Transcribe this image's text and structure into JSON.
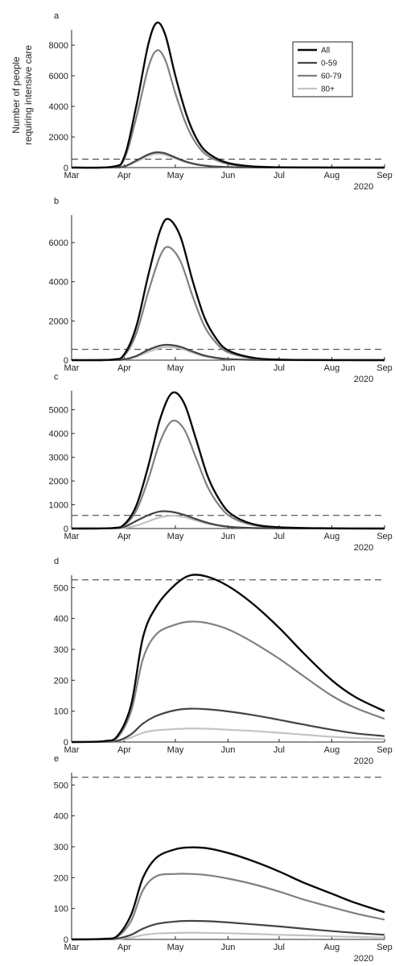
{
  "figure": {
    "ylabel_line1": "Number of people",
    "ylabel_line2": "requiring intensive care",
    "year_label": "2020"
  },
  "colors": {
    "All": "#0a0a0a",
    "0-59": "#444444",
    "60-79": "#808080",
    "80+": "#c3c3c3",
    "threshold": "#333333"
  },
  "chart_data": [
    {
      "panel": "a",
      "type": "line",
      "xticks": [
        "Mar",
        "Apr",
        "May",
        "Jun",
        "Jul",
        "Aug",
        "Sep"
      ],
      "xlim": [
        "2020-03-01",
        "2020-09-01"
      ],
      "ylim": [
        0,
        9000
      ],
      "yticks": [
        0,
        2000,
        4000,
        6000,
        8000
      ],
      "threshold": 550,
      "legend": {
        "placement": "top-right",
        "entries": [
          "All",
          "0-59",
          "60-79",
          "80+"
        ]
      },
      "series": [
        {
          "name": "All",
          "x": [
            "2020-03-01",
            "2020-03-25",
            "2020-04-01",
            "2020-04-08",
            "2020-04-15",
            "2020-04-20",
            "2020-04-25",
            "2020-05-01",
            "2020-05-08",
            "2020-05-15",
            "2020-05-22",
            "2020-06-01",
            "2020-06-15",
            "2020-07-01",
            "2020-08-01",
            "2020-09-01"
          ],
          "y": [
            0,
            60,
            700,
            4000,
            8000,
            9450,
            8700,
            6000,
            3300,
            1600,
            800,
            300,
            80,
            20,
            5,
            0
          ]
        },
        {
          "name": "0-59",
          "x": [
            "2020-03-01",
            "2020-03-25",
            "2020-04-01",
            "2020-04-08",
            "2020-04-15",
            "2020-04-20",
            "2020-04-25",
            "2020-05-01",
            "2020-05-08",
            "2020-05-15",
            "2020-05-22",
            "2020-06-01",
            "2020-06-15",
            "2020-07-01",
            "2020-08-01",
            "2020-09-01"
          ],
          "y": [
            0,
            8,
            80,
            450,
            850,
            1000,
            930,
            660,
            360,
            180,
            90,
            35,
            10,
            3,
            1,
            0
          ]
        },
        {
          "name": "60-79",
          "x": [
            "2020-03-01",
            "2020-03-25",
            "2020-04-01",
            "2020-04-08",
            "2020-04-15",
            "2020-04-20",
            "2020-04-25",
            "2020-05-01",
            "2020-05-08",
            "2020-05-15",
            "2020-05-22",
            "2020-06-01",
            "2020-06-15",
            "2020-07-01",
            "2020-08-01",
            "2020-09-01"
          ],
          "y": [
            0,
            45,
            560,
            3250,
            6500,
            7650,
            7050,
            4850,
            2650,
            1300,
            640,
            240,
            60,
            15,
            4,
            0
          ]
        },
        {
          "name": "80+",
          "x": [
            "2020-03-01",
            "2020-03-25",
            "2020-04-01",
            "2020-04-08",
            "2020-04-15",
            "2020-04-20",
            "2020-04-25",
            "2020-05-01",
            "2020-05-08",
            "2020-05-15",
            "2020-05-22",
            "2020-06-01",
            "2020-06-15",
            "2020-07-01",
            "2020-08-01",
            "2020-09-01"
          ],
          "y": [
            0,
            7,
            70,
            380,
            760,
            900,
            830,
            590,
            330,
            160,
            80,
            30,
            9,
            3,
            1,
            0
          ]
        }
      ]
    },
    {
      "panel": "b",
      "type": "line",
      "xticks": [
        "Mar",
        "Apr",
        "May",
        "Jun",
        "Jul",
        "Aug",
        "Sep"
      ],
      "xlim": [
        "2020-03-01",
        "2020-09-01"
      ],
      "ylim": [
        0,
        7400
      ],
      "yticks": [
        0,
        2000,
        4000,
        6000
      ],
      "threshold": 550,
      "series": [
        {
          "name": "All",
          "x": [
            "2020-03-01",
            "2020-03-25",
            "2020-04-01",
            "2020-04-08",
            "2020-04-15",
            "2020-04-22",
            "2020-04-27",
            "2020-05-04",
            "2020-05-11",
            "2020-05-18",
            "2020-05-25",
            "2020-06-01",
            "2020-06-15",
            "2020-07-01",
            "2020-08-01",
            "2020-09-01"
          ],
          "y": [
            0,
            30,
            300,
            1700,
            4300,
            6600,
            7200,
            6300,
            4100,
            2200,
            1100,
            500,
            130,
            30,
            5,
            0
          ]
        },
        {
          "name": "0-59",
          "x": [
            "2020-03-01",
            "2020-03-25",
            "2020-04-01",
            "2020-04-08",
            "2020-04-15",
            "2020-04-22",
            "2020-04-27",
            "2020-05-04",
            "2020-05-11",
            "2020-05-18",
            "2020-05-25",
            "2020-06-01",
            "2020-06-15",
            "2020-07-01",
            "2020-08-01",
            "2020-09-01"
          ],
          "y": [
            0,
            4,
            40,
            210,
            520,
            740,
            780,
            680,
            450,
            240,
            120,
            55,
            15,
            4,
            1,
            0
          ]
        },
        {
          "name": "60-79",
          "x": [
            "2020-03-01",
            "2020-03-25",
            "2020-04-01",
            "2020-04-08",
            "2020-04-15",
            "2020-04-22",
            "2020-04-27",
            "2020-05-04",
            "2020-05-11",
            "2020-05-18",
            "2020-05-25",
            "2020-06-01",
            "2020-06-15",
            "2020-07-01",
            "2020-08-01",
            "2020-09-01"
          ],
          "y": [
            0,
            24,
            240,
            1350,
            3450,
            5300,
            5770,
            5050,
            3300,
            1750,
            880,
            400,
            100,
            25,
            4,
            0
          ]
        },
        {
          "name": "80+",
          "x": [
            "2020-03-01",
            "2020-03-25",
            "2020-04-01",
            "2020-04-08",
            "2020-04-15",
            "2020-04-22",
            "2020-04-27",
            "2020-05-04",
            "2020-05-11",
            "2020-05-18",
            "2020-05-25",
            "2020-06-01",
            "2020-06-15",
            "2020-07-01",
            "2020-08-01",
            "2020-09-01"
          ],
          "y": [
            0,
            3,
            30,
            170,
            420,
            620,
            680,
            590,
            390,
            200,
            100,
            45,
            12,
            3,
            1,
            0
          ]
        }
      ]
    },
    {
      "panel": "c",
      "type": "line",
      "xticks": [
        "Mar",
        "Apr",
        "May",
        "Jun",
        "Jul",
        "Aug",
        "Sep"
      ],
      "xlim": [
        "2020-03-01",
        "2020-09-01"
      ],
      "ylim": [
        0,
        5800
      ],
      "yticks": [
        0,
        1000,
        2000,
        3000,
        4000,
        5000
      ],
      "threshold": 550,
      "series": [
        {
          "name": "All",
          "x": [
            "2020-03-01",
            "2020-03-25",
            "2020-04-01",
            "2020-04-08",
            "2020-04-15",
            "2020-04-22",
            "2020-04-29",
            "2020-05-06",
            "2020-05-13",
            "2020-05-20",
            "2020-05-27",
            "2020-06-03",
            "2020-06-15",
            "2020-07-01",
            "2020-08-01",
            "2020-09-01"
          ],
          "y": [
            0,
            20,
            180,
            950,
            2600,
            4600,
            5700,
            5300,
            3800,
            2200,
            1200,
            600,
            200,
            50,
            10,
            0
          ]
        },
        {
          "name": "0-59",
          "x": [
            "2020-03-01",
            "2020-03-25",
            "2020-04-01",
            "2020-04-08",
            "2020-04-15",
            "2020-04-22",
            "2020-04-29",
            "2020-05-06",
            "2020-05-13",
            "2020-05-20",
            "2020-05-27",
            "2020-06-03",
            "2020-06-15",
            "2020-07-01",
            "2020-08-01",
            "2020-09-01"
          ],
          "y": [
            0,
            8,
            70,
            320,
            560,
            720,
            700,
            580,
            400,
            240,
            130,
            65,
            22,
            6,
            1,
            0
          ]
        },
        {
          "name": "60-79",
          "x": [
            "2020-03-01",
            "2020-03-25",
            "2020-04-01",
            "2020-04-08",
            "2020-04-15",
            "2020-04-22",
            "2020-04-29",
            "2020-05-06",
            "2020-05-13",
            "2020-05-20",
            "2020-05-27",
            "2020-06-03",
            "2020-06-15",
            "2020-07-01",
            "2020-08-01",
            "2020-09-01"
          ],
          "y": [
            0,
            15,
            140,
            750,
            2050,
            3650,
            4520,
            4200,
            3000,
            1750,
            950,
            470,
            160,
            40,
            8,
            0
          ]
        },
        {
          "name": "80+",
          "x": [
            "2020-03-01",
            "2020-03-25",
            "2020-04-01",
            "2020-04-08",
            "2020-04-15",
            "2020-04-22",
            "2020-04-29",
            "2020-05-06",
            "2020-05-13",
            "2020-05-20",
            "2020-05-27",
            "2020-06-03",
            "2020-06-15",
            "2020-07-01",
            "2020-08-01",
            "2020-09-01"
          ],
          "y": [
            0,
            3,
            25,
            120,
            300,
            470,
            540,
            480,
            340,
            200,
            110,
            55,
            18,
            5,
            1,
            0
          ]
        }
      ]
    },
    {
      "panel": "d",
      "type": "line",
      "xticks": [
        "Mar",
        "Apr",
        "May",
        "Jun",
        "Jul",
        "Aug",
        "Sep"
      ],
      "xlim": [
        "2020-03-01",
        "2020-09-01"
      ],
      "ylim": [
        0,
        540
      ],
      "yticks": [
        0,
        100,
        200,
        300,
        400,
        500
      ],
      "threshold": 525,
      "series": [
        {
          "name": "All",
          "x": [
            "2020-03-01",
            "2020-03-20",
            "2020-03-28",
            "2020-04-05",
            "2020-04-12",
            "2020-04-20",
            "2020-05-01",
            "2020-05-10",
            "2020-05-20",
            "2020-06-01",
            "2020-06-15",
            "2020-07-01",
            "2020-07-15",
            "2020-08-01",
            "2020-08-15",
            "2020-09-01"
          ],
          "y": [
            0,
            3,
            20,
            120,
            340,
            440,
            510,
            540,
            535,
            505,
            450,
            370,
            290,
            200,
            145,
            100
          ]
        },
        {
          "name": "0-59",
          "x": [
            "2020-03-01",
            "2020-03-20",
            "2020-03-28",
            "2020-04-05",
            "2020-04-12",
            "2020-04-20",
            "2020-05-01",
            "2020-05-10",
            "2020-05-20",
            "2020-06-01",
            "2020-06-15",
            "2020-07-01",
            "2020-07-15",
            "2020-08-01",
            "2020-08-15",
            "2020-09-01"
          ],
          "y": [
            0,
            1,
            4,
            25,
            60,
            85,
            103,
            108,
            106,
            99,
            88,
            72,
            57,
            40,
            28,
            19
          ]
        },
        {
          "name": "60-79",
          "x": [
            "2020-03-01",
            "2020-03-20",
            "2020-03-28",
            "2020-04-05",
            "2020-04-12",
            "2020-04-20",
            "2020-05-01",
            "2020-05-10",
            "2020-05-20",
            "2020-06-01",
            "2020-06-15",
            "2020-07-01",
            "2020-07-15",
            "2020-08-01",
            "2020-08-15",
            "2020-09-01"
          ],
          "y": [
            0,
            2,
            15,
            100,
            270,
            350,
            380,
            390,
            385,
            365,
            325,
            270,
            215,
            150,
            110,
            75
          ]
        },
        {
          "name": "80+",
          "x": [
            "2020-03-01",
            "2020-03-20",
            "2020-03-28",
            "2020-04-05",
            "2020-04-12",
            "2020-04-20",
            "2020-05-01",
            "2020-05-10",
            "2020-05-20",
            "2020-06-01",
            "2020-06-15",
            "2020-07-01",
            "2020-07-15",
            "2020-08-01",
            "2020-08-15",
            "2020-09-01"
          ],
          "y": [
            0,
            0.5,
            3,
            15,
            30,
            38,
            42,
            44,
            43,
            40,
            36,
            30,
            24,
            17,
            13,
            9
          ]
        }
      ]
    },
    {
      "panel": "e",
      "type": "line",
      "xticks": [
        "Mar",
        "Apr",
        "May",
        "Jun",
        "Jul",
        "Aug",
        "Sep"
      ],
      "xlim": [
        "2020-03-01",
        "2020-09-01"
      ],
      "ylim": [
        0,
        540
      ],
      "yticks": [
        0,
        100,
        200,
        300,
        400,
        500
      ],
      "threshold": 525,
      "series": [
        {
          "name": "All",
          "x": [
            "2020-03-01",
            "2020-03-20",
            "2020-03-28",
            "2020-04-05",
            "2020-04-12",
            "2020-04-20",
            "2020-05-01",
            "2020-05-10",
            "2020-05-20",
            "2020-06-01",
            "2020-06-15",
            "2020-07-01",
            "2020-07-15",
            "2020-08-01",
            "2020-08-15",
            "2020-09-01"
          ],
          "y": [
            0,
            2,
            12,
            80,
            200,
            265,
            292,
            298,
            295,
            280,
            255,
            220,
            185,
            148,
            118,
            88
          ]
        },
        {
          "name": "0-59",
          "x": [
            "2020-03-01",
            "2020-03-20",
            "2020-03-28",
            "2020-04-05",
            "2020-04-12",
            "2020-04-20",
            "2020-05-01",
            "2020-05-10",
            "2020-05-20",
            "2020-06-01",
            "2020-06-15",
            "2020-07-01",
            "2020-07-15",
            "2020-08-01",
            "2020-08-15",
            "2020-09-01"
          ],
          "y": [
            0,
            0.5,
            3,
            15,
            35,
            50,
            58,
            60,
            59,
            55,
            49,
            42,
            35,
            27,
            21,
            15
          ]
        },
        {
          "name": "60-79",
          "x": [
            "2020-03-01",
            "2020-03-20",
            "2020-03-28",
            "2020-04-05",
            "2020-04-12",
            "2020-04-20",
            "2020-05-01",
            "2020-05-10",
            "2020-05-20",
            "2020-06-01",
            "2020-06-15",
            "2020-07-01",
            "2020-07-15",
            "2020-08-01",
            "2020-08-15",
            "2020-09-01"
          ],
          "y": [
            0,
            1,
            9,
            60,
            160,
            205,
            212,
            212,
            208,
            197,
            180,
            155,
            130,
            104,
            84,
            64
          ]
        },
        {
          "name": "80+",
          "x": [
            "2020-03-01",
            "2020-03-20",
            "2020-03-28",
            "2020-04-05",
            "2020-04-12",
            "2020-04-20",
            "2020-05-01",
            "2020-05-10",
            "2020-05-20",
            "2020-06-01",
            "2020-06-15",
            "2020-07-01",
            "2020-07-15",
            "2020-08-01",
            "2020-08-15",
            "2020-09-01"
          ],
          "y": [
            0,
            0.2,
            1,
            6,
            14,
            19,
            21,
            22,
            21,
            20,
            18,
            15,
            13,
            10,
            8,
            6
          ]
        }
      ]
    }
  ]
}
